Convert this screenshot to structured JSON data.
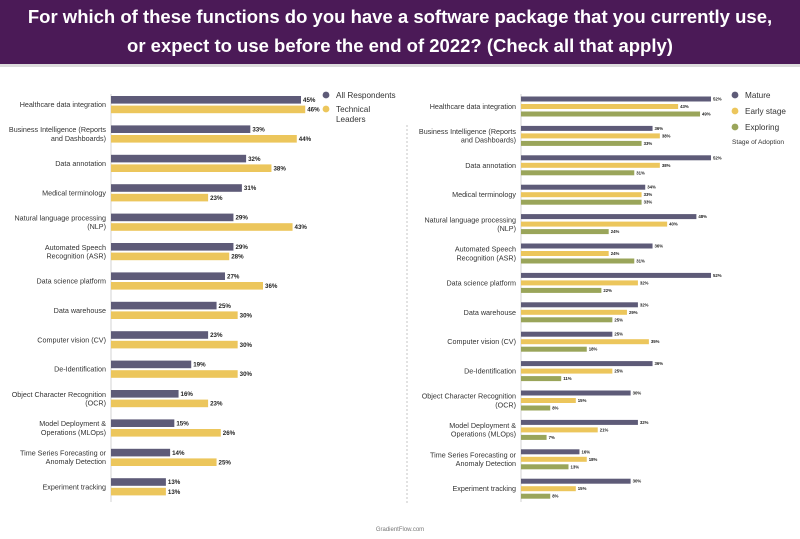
{
  "header": {
    "title_line1": "For which of these functions do you have a software package that you currently use,",
    "title_line2": "or expect to use before the end of 2022? (Check all that apply)",
    "background": "#4b1a57"
  },
  "footer": {
    "source": "GradientFlow.com"
  },
  "chart_data": [
    {
      "type": "bar",
      "orientation": "horizontal",
      "categories": [
        "Healthcare data integration",
        "Business Intelligence (Reports and Dashboards)",
        "Data annotation",
        "Medical terminology",
        "Natural language processing (NLP)",
        "Automated Speech Recognition (ASR)",
        "Data science platform",
        "Data warehouse",
        "Computer vision (CV)",
        "De-Identification",
        "Object Character Recognition (OCR)",
        "Model Deployment & Operations (MLOps)",
        "Time Series Forecasting or Anomaly Detection",
        "Experiment tracking"
      ],
      "category_lines": [
        [
          "Healthcare data integration"
        ],
        [
          "Business Intelligence (Reports",
          "and Dashboards)"
        ],
        [
          "Data annotation"
        ],
        [
          "Medical terminology"
        ],
        [
          "Natural language processing",
          "(NLP)"
        ],
        [
          "Automated Speech",
          "Recognition (ASR)"
        ],
        [
          "Data science platform"
        ],
        [
          "Data warehouse"
        ],
        [
          "Computer vision (CV)"
        ],
        [
          "De-Identification"
        ],
        [
          "Object Character Recognition",
          "(OCR)"
        ],
        [
          "Model Deployment &",
          "Operations (MLOps)"
        ],
        [
          "Time Series Forecasting or",
          "Anomaly Detection"
        ],
        [
          "Experiment tracking"
        ]
      ],
      "series": [
        {
          "name": "All Respondents",
          "legend_lines": [
            "All Respondents"
          ],
          "color": "#5e5b78",
          "values": [
            45,
            33,
            32,
            31,
            29,
            29,
            27,
            25,
            23,
            19,
            16,
            15,
            14,
            13
          ]
        },
        {
          "name": "Technical Leaders",
          "legend_lines": [
            "Technical",
            "Leaders"
          ],
          "color": "#ecc65c",
          "values": [
            46,
            44,
            38,
            23,
            43,
            28,
            36,
            30,
            30,
            30,
            23,
            26,
            25,
            13
          ]
        }
      ],
      "value_suffix": "%",
      "xlim": [
        0,
        100
      ],
      "legend_title": "",
      "legend_position": "top-right"
    },
    {
      "type": "bar",
      "orientation": "horizontal",
      "categories": [
        "Healthcare data integration",
        "Business Intelligence (Reports and Dashboards)",
        "Data annotation",
        "Medical terminology",
        "Natural language processing (NLP)",
        "Automated Speech Recognition (ASR)",
        "Data science platform",
        "Data warehouse",
        "Computer vision (CV)",
        "De-Identification",
        "Object Character Recognition (OCR)",
        "Model Deployment & Operations (MLOps)",
        "Time Series Forecasting or Anomaly Detection",
        "Experiment tracking"
      ],
      "category_lines": [
        [
          "Healthcare data integration"
        ],
        [
          "Business Intelligence (Reports",
          "and Dashboards)"
        ],
        [
          "Data annotation"
        ],
        [
          "Medical terminology"
        ],
        [
          "Natural language processing",
          "(NLP)"
        ],
        [
          "Automated Speech",
          "Recognition (ASR)"
        ],
        [
          "Data science platform"
        ],
        [
          "Data warehouse"
        ],
        [
          "Computer vision (CV)"
        ],
        [
          "De-Identification"
        ],
        [
          "Object Character Recognition",
          "(OCR)"
        ],
        [
          "Model Deployment &",
          "Operations (MLOps)"
        ],
        [
          "Time Series Forecasting or",
          "Anomaly Detection"
        ],
        [
          "Experiment tracking"
        ]
      ],
      "series": [
        {
          "name": "Mature",
          "legend_lines": [
            "Mature"
          ],
          "color": "#5e5b78",
          "values": [
            52,
            36,
            52,
            34,
            48,
            36,
            52,
            32,
            25,
            36,
            30,
            32,
            16,
            30
          ]
        },
        {
          "name": "Early stage",
          "legend_lines": [
            "Early stage"
          ],
          "color": "#ecc65c",
          "values": [
            43,
            38,
            38,
            33,
            40,
            24,
            32,
            29,
            35,
            25,
            15,
            21,
            18,
            15
          ]
        },
        {
          "name": "Exploring",
          "legend_lines": [
            "Exploring"
          ],
          "color": "#9aa55a",
          "values": [
            49,
            33,
            31,
            33,
            24,
            31,
            22,
            25,
            18,
            11,
            8,
            7,
            13,
            8
          ]
        }
      ],
      "value_suffix": "%",
      "xlim": [
        0,
        100
      ],
      "legend_title": "Stage of Adoption",
      "legend_position": "top-right"
    }
  ]
}
